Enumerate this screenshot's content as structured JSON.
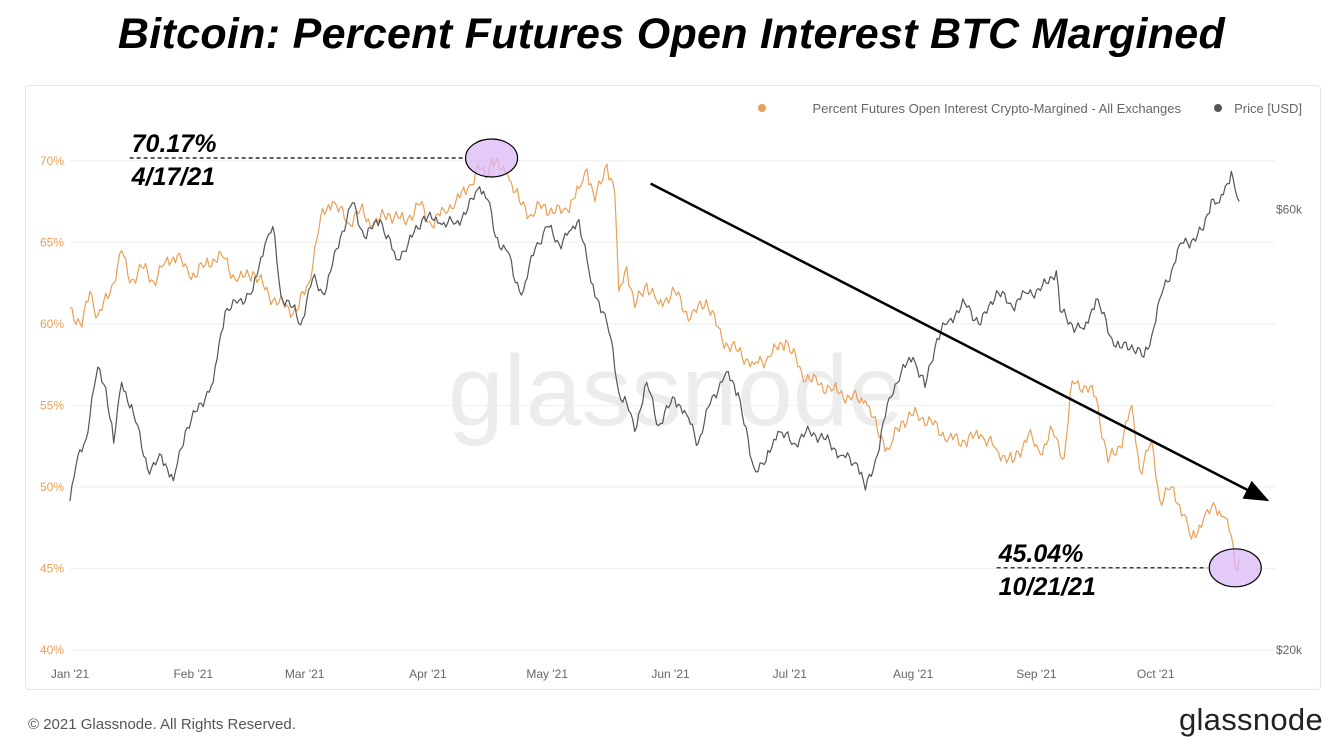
{
  "header": {
    "title": "Bitcoin: Percent Futures Open Interest BTC Margined"
  },
  "footer": {
    "copyright": "© 2021 Glassnode. All Rights Reserved.",
    "brand": "glassnode"
  },
  "chart_data": {
    "type": "line",
    "watermark": "glassnode",
    "colors": {
      "percent": "#e8a157",
      "price": "#555555",
      "grid": "#eeeeee",
      "highlight": "#d9b8f5",
      "arrow": "#000000"
    },
    "x_axis": {
      "range": [
        "2021-01-01",
        "2021-10-31"
      ],
      "tick_labels": [
        "Jan '21",
        "Feb '21",
        "Mar '21",
        "Apr '21",
        "May '21",
        "Jun '21",
        "Jul '21",
        "Aug '21",
        "Sep '21",
        "Oct '21"
      ],
      "tick_dates": [
        "2021-01-01",
        "2021-02-01",
        "2021-03-01",
        "2021-04-01",
        "2021-05-01",
        "2021-06-01",
        "2021-07-01",
        "2021-08-01",
        "2021-09-01",
        "2021-10-01"
      ]
    },
    "y_left": {
      "ylim": [
        40,
        72.5
      ],
      "ticks": [
        40,
        45,
        50,
        55,
        60,
        65,
        70
      ],
      "tick_labels": [
        "40%",
        "45%",
        "50%",
        "55%",
        "60%",
        "65%",
        "70%"
      ]
    },
    "y_right": {
      "scale": "log",
      "ylim": [
        20000,
        75000
      ],
      "ticks": [
        20000,
        60000
      ],
      "tick_labels": [
        "$20k",
        "$60k"
      ]
    },
    "legend": {
      "position": "top-right",
      "items": [
        {
          "label": "Percent Futures Open Interest Crypto-Margined - All Exchanges",
          "color": "#e8a157"
        },
        {
          "label": "Price [USD]",
          "color": "#555555"
        }
      ]
    },
    "series": [
      {
        "name": "Percent Futures Open Interest Crypto-Margined - All Exchanges",
        "axis": "left",
        "points": [
          [
            "2021-01-01",
            61.0
          ],
          [
            "2021-01-04",
            59.8
          ],
          [
            "2021-01-06",
            62.0
          ],
          [
            "2021-01-08",
            60.5
          ],
          [
            "2021-01-11",
            61.8
          ],
          [
            "2021-01-14",
            64.5
          ],
          [
            "2021-01-16",
            62.5
          ],
          [
            "2021-01-19",
            63.5
          ],
          [
            "2021-01-22",
            62.6
          ],
          [
            "2021-01-25",
            63.8
          ],
          [
            "2021-01-28",
            64.2
          ],
          [
            "2021-01-31",
            62.9
          ],
          [
            "2021-02-04",
            63.6
          ],
          [
            "2021-02-08",
            64.3
          ],
          [
            "2021-02-12",
            62.6
          ],
          [
            "2021-02-16",
            63.2
          ],
          [
            "2021-02-20",
            61.8
          ],
          [
            "2021-02-24",
            61.0
          ],
          [
            "2021-02-27",
            60.8
          ],
          [
            "2021-03-02",
            62.5
          ],
          [
            "2021-03-05",
            66.5
          ],
          [
            "2021-03-08",
            67.5
          ],
          [
            "2021-03-12",
            66.2
          ],
          [
            "2021-03-15",
            67.0
          ],
          [
            "2021-03-18",
            66.0
          ],
          [
            "2021-03-22",
            66.8
          ],
          [
            "2021-03-26",
            66.3
          ],
          [
            "2021-03-30",
            67.3
          ],
          [
            "2021-04-02",
            66.0
          ],
          [
            "2021-04-05",
            67.0
          ],
          [
            "2021-04-08",
            67.5
          ],
          [
            "2021-04-11",
            68.3
          ],
          [
            "2021-04-14",
            69.5
          ],
          [
            "2021-04-16",
            69.0
          ],
          [
            "2021-04-17",
            70.17
          ],
          [
            "2021-04-19",
            69.5
          ],
          [
            "2021-04-21",
            69.2
          ],
          [
            "2021-04-24",
            67.5
          ],
          [
            "2021-04-27",
            66.7
          ],
          [
            "2021-04-30",
            67.3
          ],
          [
            "2021-05-03",
            66.8
          ],
          [
            "2021-05-06",
            67.0
          ],
          [
            "2021-05-09",
            68.3
          ],
          [
            "2021-05-11",
            69.5
          ],
          [
            "2021-05-13",
            67.5
          ],
          [
            "2021-05-16",
            69.8
          ],
          [
            "2021-05-18",
            68.0
          ],
          [
            "2021-05-19",
            62.0
          ],
          [
            "2021-05-21",
            63.5
          ],
          [
            "2021-05-23",
            61.0
          ],
          [
            "2021-05-26",
            62.5
          ],
          [
            "2021-05-29",
            61.2
          ],
          [
            "2021-06-02",
            62.0
          ],
          [
            "2021-06-06",
            60.3
          ],
          [
            "2021-06-10",
            61.5
          ],
          [
            "2021-06-14",
            59.0
          ],
          [
            "2021-06-18",
            58.3
          ],
          [
            "2021-06-22",
            57.5
          ],
          [
            "2021-06-26",
            58.0
          ],
          [
            "2021-06-30",
            59.0
          ],
          [
            "2021-07-04",
            57.0
          ],
          [
            "2021-07-08",
            56.3
          ],
          [
            "2021-07-12",
            56.0
          ],
          [
            "2021-07-16",
            55.5
          ],
          [
            "2021-07-20",
            55.3
          ],
          [
            "2021-07-23",
            53.5
          ],
          [
            "2021-07-26",
            52.3
          ],
          [
            "2021-07-29",
            54.0
          ],
          [
            "2021-08-02",
            54.5
          ],
          [
            "2021-08-06",
            53.8
          ],
          [
            "2021-08-10",
            53.0
          ],
          [
            "2021-08-14",
            52.8
          ],
          [
            "2021-08-18",
            53.2
          ],
          [
            "2021-08-22",
            52.3
          ],
          [
            "2021-08-26",
            51.5
          ],
          [
            "2021-08-30",
            53.2
          ],
          [
            "2021-09-02",
            52.0
          ],
          [
            "2021-09-05",
            53.5
          ],
          [
            "2021-09-08",
            51.8
          ],
          [
            "2021-09-10",
            56.5
          ],
          [
            "2021-09-13",
            56.2
          ],
          [
            "2021-09-16",
            55.5
          ],
          [
            "2021-09-19",
            51.5
          ],
          [
            "2021-09-22",
            52.5
          ],
          [
            "2021-09-25",
            55.0
          ],
          [
            "2021-09-27",
            51.0
          ],
          [
            "2021-09-30",
            52.8
          ],
          [
            "2021-10-02",
            49.2
          ],
          [
            "2021-10-05",
            50.0
          ],
          [
            "2021-10-08",
            48.3
          ],
          [
            "2021-10-10",
            46.8
          ],
          [
            "2021-10-13",
            48.0
          ],
          [
            "2021-10-16",
            48.8
          ],
          [
            "2021-10-18",
            48.2
          ],
          [
            "2021-10-20",
            47.0
          ],
          [
            "2021-10-21",
            45.04
          ],
          [
            "2021-10-22",
            45.6
          ]
        ]
      },
      {
        "name": "Price [USD]",
        "axis": "right",
        "points": [
          [
            "2021-01-01",
            29000
          ],
          [
            "2021-01-03",
            32500
          ],
          [
            "2021-01-05",
            33800
          ],
          [
            "2021-01-08",
            40500
          ],
          [
            "2021-01-10",
            38500
          ],
          [
            "2021-01-12",
            33500
          ],
          [
            "2021-01-14",
            39000
          ],
          [
            "2021-01-17",
            36000
          ],
          [
            "2021-01-21",
            31000
          ],
          [
            "2021-01-24",
            32500
          ],
          [
            "2021-01-27",
            30500
          ],
          [
            "2021-01-30",
            34500
          ],
          [
            "2021-02-03",
            37000
          ],
          [
            "2021-02-06",
            39000
          ],
          [
            "2021-02-09",
            46500
          ],
          [
            "2021-02-12",
            47500
          ],
          [
            "2021-02-16",
            49000
          ],
          [
            "2021-02-19",
            55000
          ],
          [
            "2021-02-21",
            57500
          ],
          [
            "2021-02-23",
            48500
          ],
          [
            "2021-02-26",
            47000
          ],
          [
            "2021-02-28",
            45000
          ],
          [
            "2021-03-03",
            50500
          ],
          [
            "2021-03-06",
            48500
          ],
          [
            "2021-03-10",
            56000
          ],
          [
            "2021-03-13",
            61000
          ],
          [
            "2021-03-16",
            56000
          ],
          [
            "2021-03-20",
            58500
          ],
          [
            "2021-03-24",
            53000
          ],
          [
            "2021-03-27",
            55000
          ],
          [
            "2021-03-31",
            59000
          ],
          [
            "2021-04-04",
            58000
          ],
          [
            "2021-04-08",
            58000
          ],
          [
            "2021-04-11",
            60000
          ],
          [
            "2021-04-14",
            63500
          ],
          [
            "2021-04-16",
            61500
          ],
          [
            "2021-04-18",
            56000
          ],
          [
            "2021-04-21",
            54000
          ],
          [
            "2021-04-23",
            50000
          ],
          [
            "2021-04-25",
            49000
          ],
          [
            "2021-04-28",
            54500
          ],
          [
            "2021-05-01",
            57500
          ],
          [
            "2021-05-04",
            55000
          ],
          [
            "2021-05-07",
            57000
          ],
          [
            "2021-05-09",
            58500
          ],
          [
            "2021-05-12",
            50000
          ],
          [
            "2021-05-15",
            46500
          ],
          [
            "2021-05-17",
            43500
          ],
          [
            "2021-05-19",
            38000
          ],
          [
            "2021-05-21",
            37000
          ],
          [
            "2021-05-23",
            34500
          ],
          [
            "2021-05-26",
            39000
          ],
          [
            "2021-05-29",
            35000
          ],
          [
            "2021-06-02",
            37500
          ],
          [
            "2021-06-05",
            36000
          ],
          [
            "2021-06-08",
            33500
          ],
          [
            "2021-06-11",
            37000
          ],
          [
            "2021-06-15",
            40000
          ],
          [
            "2021-06-18",
            38000
          ],
          [
            "2021-06-21",
            32500
          ],
          [
            "2021-06-22",
            31500
          ],
          [
            "2021-06-25",
            32000
          ],
          [
            "2021-06-28",
            34500
          ],
          [
            "2021-07-02",
            33500
          ],
          [
            "2021-07-06",
            34500
          ],
          [
            "2021-07-10",
            33800
          ],
          [
            "2021-07-14",
            32500
          ],
          [
            "2021-07-18",
            31800
          ],
          [
            "2021-07-20",
            29800
          ],
          [
            "2021-07-23",
            32500
          ],
          [
            "2021-07-26",
            37500
          ],
          [
            "2021-07-29",
            40000
          ],
          [
            "2021-08-01",
            41500
          ],
          [
            "2021-08-04",
            38500
          ],
          [
            "2021-08-07",
            43500
          ],
          [
            "2021-08-10",
            45500
          ],
          [
            "2021-08-14",
            47500
          ],
          [
            "2021-08-18",
            45000
          ],
          [
            "2021-08-22",
            49000
          ],
          [
            "2021-08-26",
            47000
          ],
          [
            "2021-08-29",
            48800
          ],
          [
            "2021-09-02",
            49000
          ],
          [
            "2021-09-06",
            51500
          ],
          [
            "2021-09-07",
            46500
          ],
          [
            "2021-09-10",
            45000
          ],
          [
            "2021-09-13",
            44500
          ],
          [
            "2021-09-16",
            48000
          ],
          [
            "2021-09-20",
            43500
          ],
          [
            "2021-09-22",
            42500
          ],
          [
            "2021-09-25",
            42800
          ],
          [
            "2021-09-28",
            41500
          ],
          [
            "2021-09-30",
            43800
          ],
          [
            "2021-10-02",
            48000
          ],
          [
            "2021-10-05",
            51500
          ],
          [
            "2021-10-07",
            55000
          ],
          [
            "2021-10-10",
            55500
          ],
          [
            "2021-10-13",
            57000
          ],
          [
            "2021-10-15",
            61500
          ],
          [
            "2021-10-17",
            61000
          ],
          [
            "2021-10-19",
            64000
          ],
          [
            "2021-10-20",
            66000
          ],
          [
            "2021-10-21",
            63000
          ],
          [
            "2021-10-22",
            61200
          ]
        ]
      }
    ],
    "trend_arrow": {
      "from": [
        "2021-05-27",
        68.6
      ],
      "to": [
        "2021-10-29",
        49.2
      ]
    },
    "annotations": [
      {
        "value_label": "70.17%",
        "date_label": "4/17/21",
        "x": "2021-04-17",
        "y": 70.17,
        "label_at": "2021-01-16"
      },
      {
        "value_label": "45.04%",
        "date_label": "10/21/21",
        "x": "2021-10-21",
        "y": 45.04,
        "label_at": "2021-08-22"
      }
    ]
  }
}
